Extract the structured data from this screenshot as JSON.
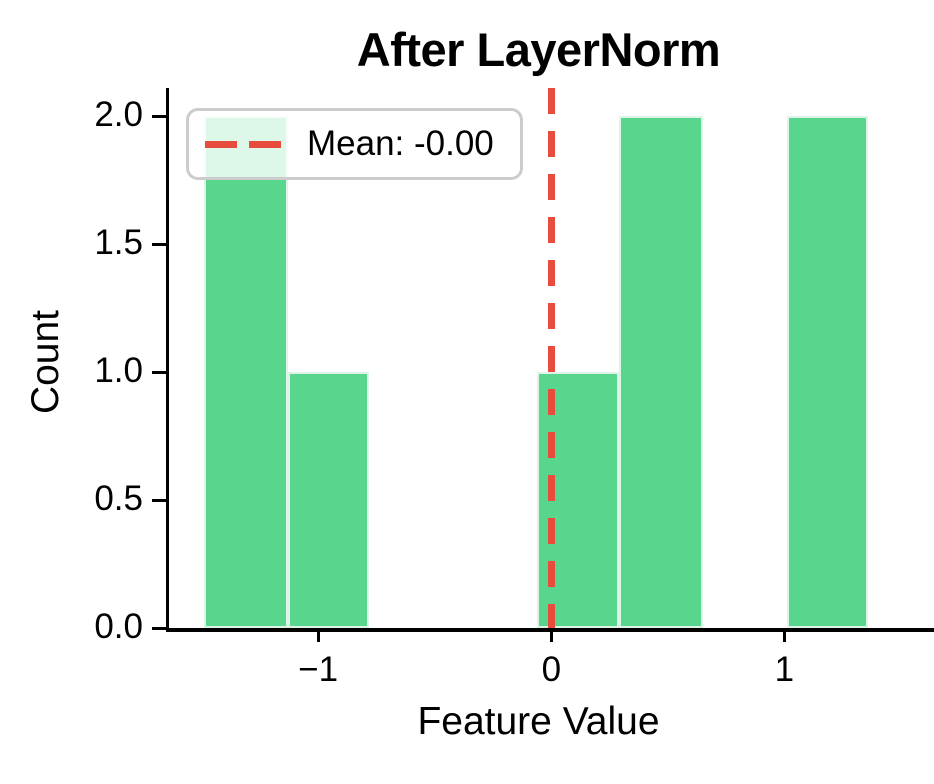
{
  "chart_data": {
    "type": "bar",
    "subtype": "histogram",
    "title": "After LayerNorm",
    "xlabel": "Feature Value",
    "ylabel": "Count",
    "bin_edges": [
      -1.49,
      -1.13,
      -0.78,
      -0.42,
      -0.06,
      0.29,
      0.65,
      1.01,
      1.36
    ],
    "counts": [
      2,
      1,
      0,
      0,
      1,
      2,
      0,
      2
    ],
    "mean_line": {
      "x": 0,
      "style": "dashed",
      "color": "#e74c3c",
      "label": "Mean: -0.00"
    },
    "legend": {
      "label": "Mean: -0.00",
      "position": "upper left"
    },
    "bar_color": "#58d68d",
    "bar_edge_color": "#ddf5e8",
    "axis_color": "#000000",
    "background_color": "#ffffff",
    "xlim": [
      -1.64,
      1.53
    ],
    "ylim": [
      0,
      2.11
    ],
    "xticks": [
      {
        "value": -1,
        "label": "−1"
      },
      {
        "value": 0,
        "label": "0"
      },
      {
        "value": 1,
        "label": "1"
      }
    ],
    "yticks": [
      {
        "value": 0.0,
        "label": "0.0"
      },
      {
        "value": 0.5,
        "label": "0.5"
      },
      {
        "value": 1.0,
        "label": "1.0"
      },
      {
        "value": 1.5,
        "label": "1.5"
      },
      {
        "value": 2.0,
        "label": "2.0"
      }
    ],
    "grid": false
  }
}
